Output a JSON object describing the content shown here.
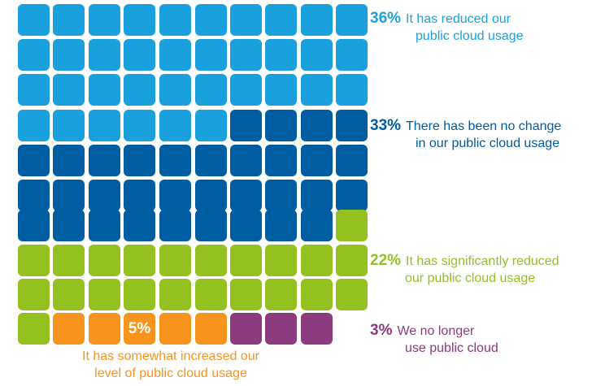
{
  "chart_data": {
    "type": "waffle",
    "grid": {
      "rows": 10,
      "cols": 10
    },
    "segments": [
      {
        "key": "reduced",
        "value": 36,
        "pct_label": "36%",
        "label_line1": "It has reduced our",
        "label_line2": "public cloud usage",
        "color": "#1BA0DE"
      },
      {
        "key": "no_change",
        "value": 33,
        "pct_label": "33%",
        "label_line1": "There has been no change",
        "label_line2": "in our public cloud usage",
        "color": "#005DA1"
      },
      {
        "key": "significantly_reduced",
        "value": 22,
        "pct_label": "22%",
        "label_line1": "It has significantly reduced",
        "label_line2": "our public cloud usage",
        "color": "#94C11F"
      },
      {
        "key": "somewhat_increased",
        "value": 5,
        "pct_label": "5%",
        "label_line1": "It has somewhat increased our",
        "label_line2": "level of public cloud usage",
        "color": "#F7941D"
      },
      {
        "key": "no_longer",
        "value": 3,
        "pct_label": "3%",
        "label_line1": "We no longer",
        "label_line2": "use public cloud",
        "color": "#8C3B7E"
      }
    ]
  }
}
